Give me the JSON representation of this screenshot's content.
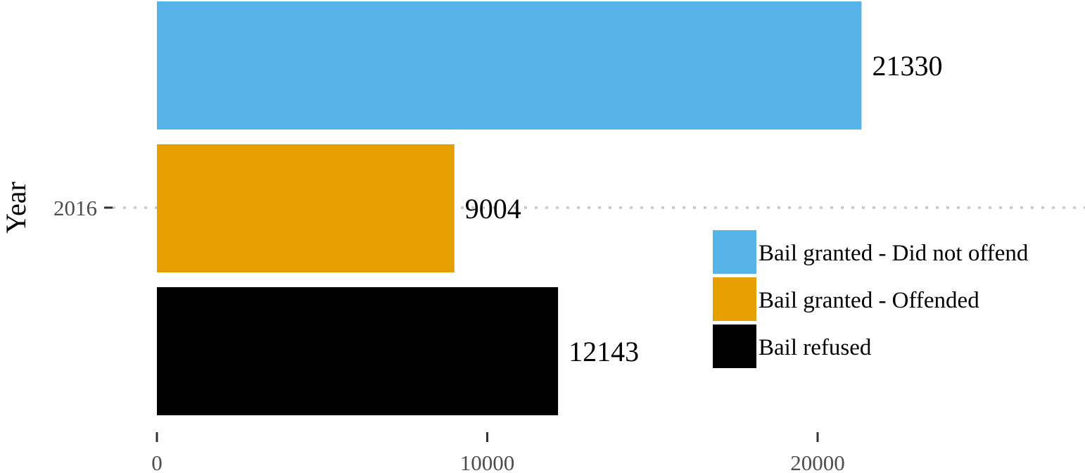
{
  "chart_data": {
    "type": "bar",
    "orientation": "horizontal",
    "title": "",
    "xlabel": "",
    "ylabel": "Year",
    "categories": [
      "2016"
    ],
    "series": [
      {
        "name": "Bail granted - Did not offend",
        "values": [
          21330
        ],
        "color": "#56B4E9"
      },
      {
        "name": "Bail granted - Offended",
        "values": [
          9004
        ],
        "color": "#E69F00"
      },
      {
        "name": "Bail refused",
        "values": [
          12143
        ],
        "color": "#000000"
      }
    ],
    "x_ticks": [
      "0",
      "10000",
      "20000"
    ],
    "xlim": [
      0,
      28000
    ],
    "data_labels": [
      "21330",
      "9004",
      "12143"
    ],
    "grid": "dotted horizontal line at category",
    "legend_position": "right"
  }
}
